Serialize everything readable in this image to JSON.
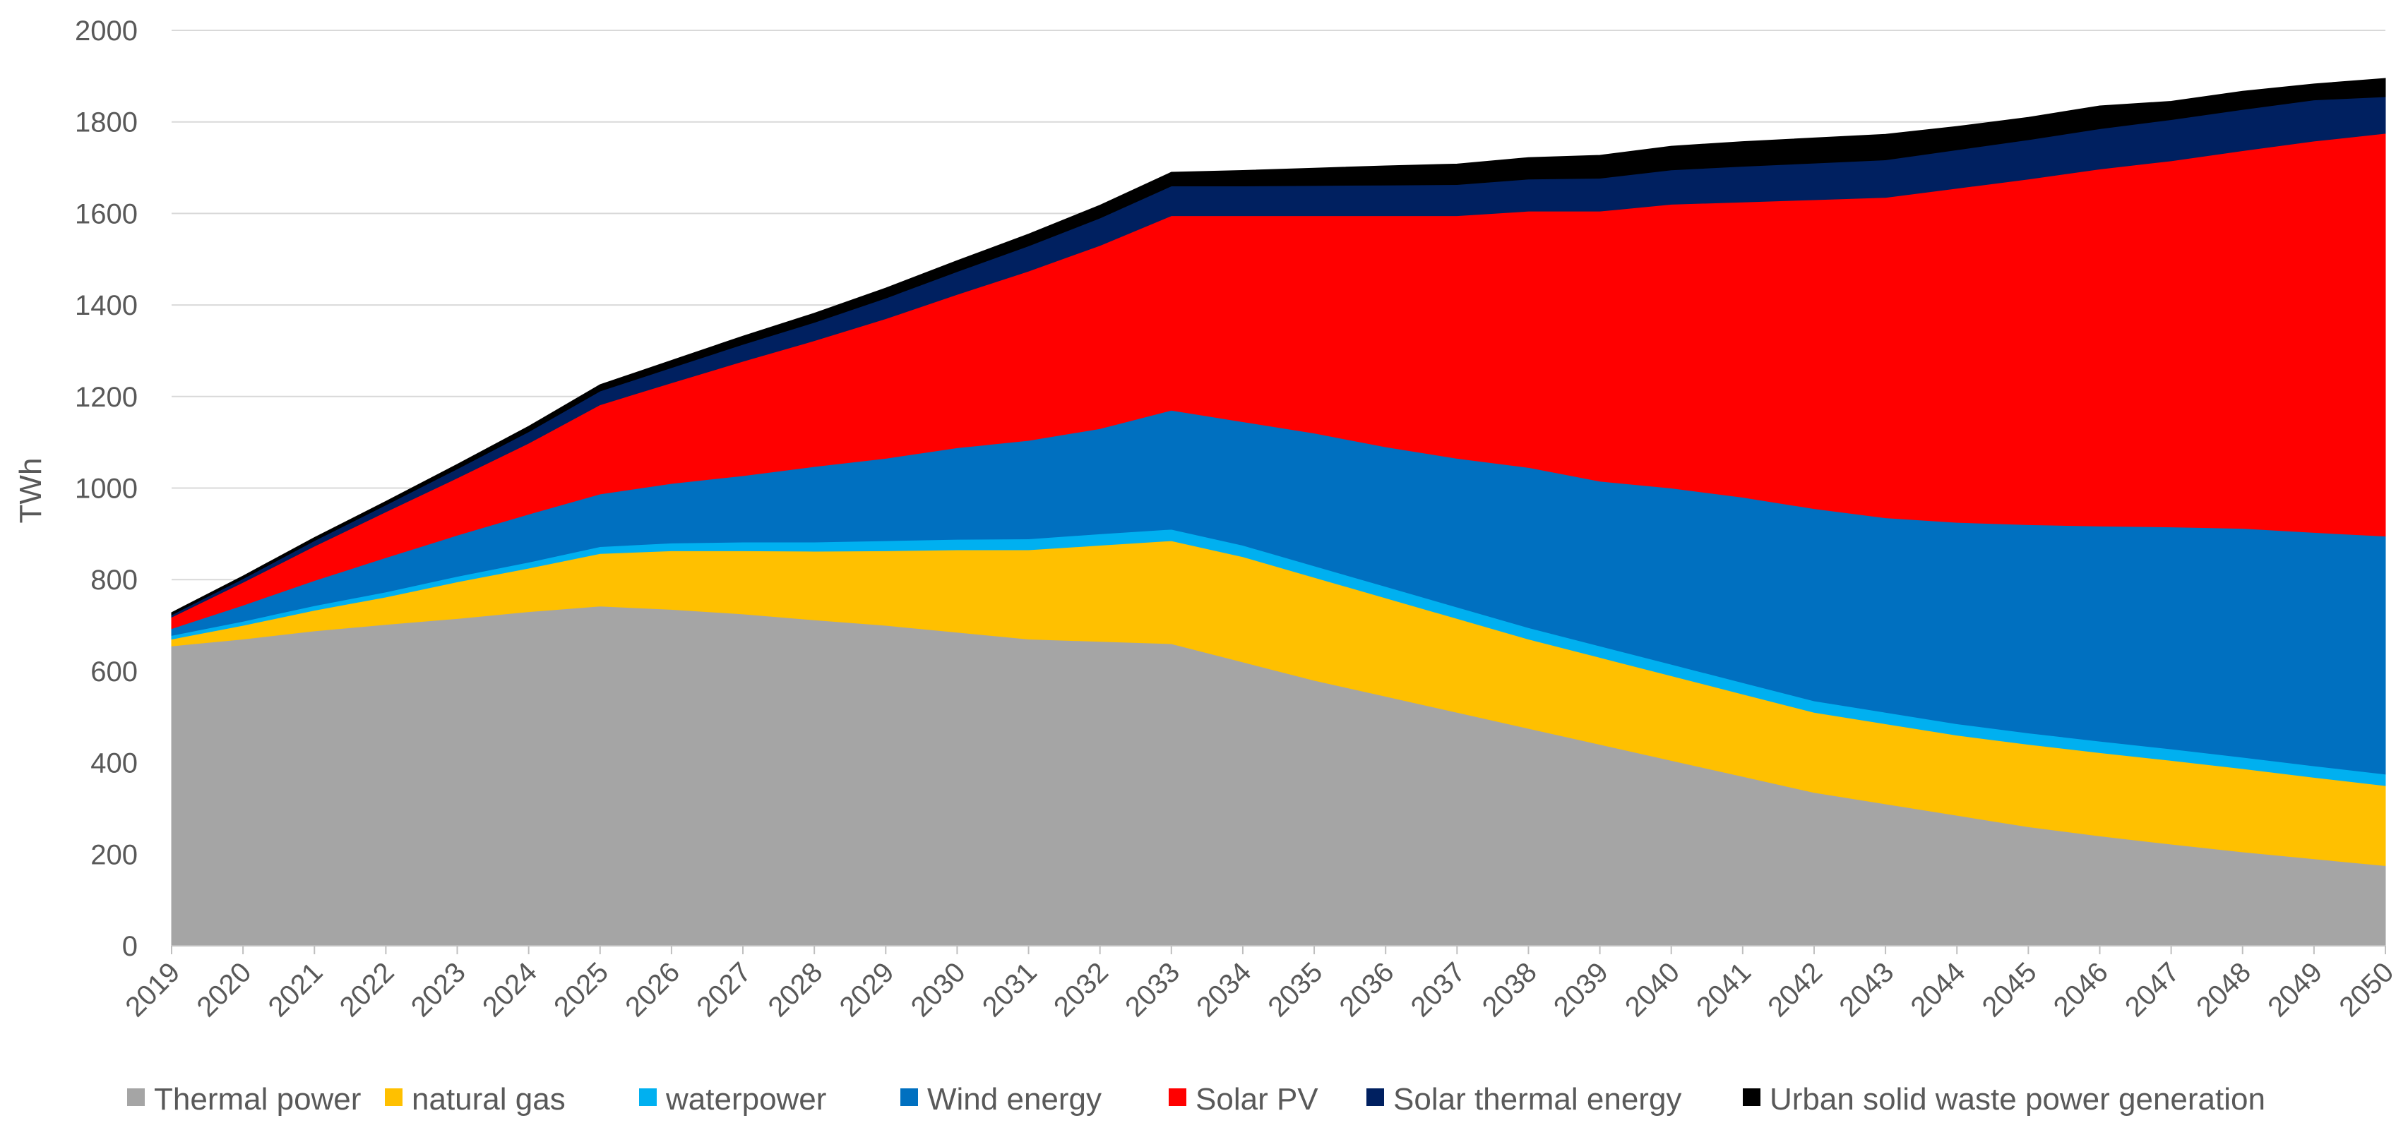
{
  "chart_data": {
    "type": "area",
    "stacked": true,
    "title": "",
    "xlabel": "",
    "ylabel": "TWh",
    "ylim": [
      0,
      2000
    ],
    "yticks": [
      0,
      200,
      400,
      600,
      800,
      1000,
      1200,
      1400,
      1600,
      1800,
      2000
    ],
    "grid": true,
    "legend_position": "bottom",
    "categories": [
      "2019",
      "2020",
      "2021",
      "2022",
      "2023",
      "2024",
      "2025",
      "2026",
      "2027",
      "2028",
      "2029",
      "2030",
      "2031",
      "2032",
      "2033",
      "2034",
      "2035",
      "2036",
      "2037",
      "2038",
      "2039",
      "2040",
      "2041",
      "2042",
      "2043",
      "2044",
      "2045",
      "2046",
      "2047",
      "2048",
      "2049",
      "2050"
    ],
    "series": [
      {
        "name": "Thermal power",
        "color": "#A5A5A5",
        "values": [
          655,
          670,
          688,
          702,
          715,
          730,
          742,
          735,
          725,
          712,
          700,
          685,
          670,
          665,
          660,
          620,
          580,
          545,
          510,
          475,
          440,
          405,
          370,
          335,
          310,
          285,
          260,
          240,
          222,
          205,
          190,
          175
        ]
      },
      {
        "name": "natural gas",
        "color": "#FFC000",
        "values": [
          15,
          30,
          45,
          60,
          80,
          95,
          115,
          128,
          138,
          150,
          163,
          180,
          195,
          210,
          225,
          230,
          225,
          215,
          205,
          195,
          190,
          185,
          180,
          175,
          175,
          175,
          180,
          182,
          183,
          182,
          178,
          175
        ]
      },
      {
        "name": "waterpower",
        "color": "#00B0F0",
        "values": [
          8,
          9,
          10,
          11,
          12,
          13,
          15,
          17,
          19,
          20,
          22,
          23,
          24,
          25,
          25,
          25,
          25,
          25,
          25,
          25,
          25,
          25,
          25,
          25,
          25,
          25,
          25,
          25,
          25,
          25,
          25,
          25
        ]
      },
      {
        "name": "Wind energy",
        "color": "#0070C0",
        "values": [
          15,
          35,
          55,
          75,
          90,
          105,
          115,
          130,
          145,
          165,
          180,
          200,
          215,
          230,
          260,
          270,
          290,
          305,
          325,
          350,
          360,
          385,
          405,
          420,
          425,
          440,
          455,
          470,
          485,
          500,
          510,
          520
        ]
      },
      {
        "name": "Solar PV",
        "color": "#FF0000",
        "values": [
          25,
          50,
          75,
          100,
          125,
          155,
          195,
          220,
          250,
          275,
          305,
          335,
          370,
          400,
          425,
          450,
          475,
          505,
          530,
          560,
          590,
          620,
          645,
          675,
          700,
          730,
          755,
          780,
          800,
          825,
          855,
          880
        ]
      },
      {
        "name": "Solar thermal energy",
        "color": "#002060",
        "values": [
          5,
          8,
          12,
          15,
          20,
          25,
          30,
          33,
          37,
          40,
          45,
          50,
          55,
          60,
          65,
          65,
          66,
          67,
          68,
          70,
          72,
          75,
          78,
          80,
          82,
          84,
          86,
          88,
          90,
          90,
          90,
          80
        ]
      },
      {
        "name": "Urban solid waste power generation",
        "color": "#000000",
        "values": [
          5,
          6,
          7,
          8,
          10,
          12,
          14,
          16,
          18,
          20,
          22,
          24,
          26,
          28,
          30,
          34,
          38,
          42,
          45,
          47,
          50,
          52,
          54,
          55,
          56,
          51,
          49,
          50,
          40,
          40,
          35,
          40
        ]
      }
    ]
  }
}
